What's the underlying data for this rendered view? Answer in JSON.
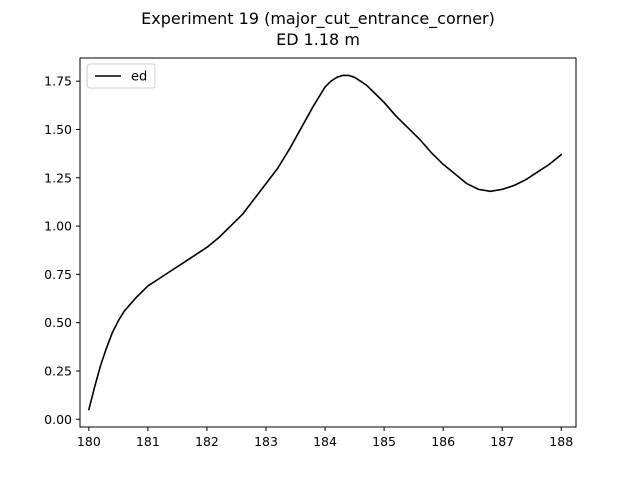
{
  "chart_data": {
    "type": "line",
    "title": "Experiment 19 (major_cut_entrance_corner)",
    "subtitle": "ED 1.18 m",
    "xlabel": "",
    "ylabel": "",
    "xlim": [
      179.85,
      188.25
    ],
    "ylim": [
      -0.04,
      1.87
    ],
    "xticks": [
      180,
      181,
      182,
      183,
      184,
      185,
      186,
      187,
      188
    ],
    "xtick_labels": [
      "180",
      "181",
      "182",
      "183",
      "184",
      "185",
      "186",
      "187",
      "188"
    ],
    "yticks": [
      0.0,
      0.25,
      0.5,
      0.75,
      1.0,
      1.25,
      1.5,
      1.75
    ],
    "ytick_labels": [
      "0.00",
      "0.25",
      "0.50",
      "0.75",
      "1.00",
      "1.25",
      "1.50",
      "1.75"
    ],
    "grid": false,
    "legend_position": "top-left",
    "series": [
      {
        "name": "ed",
        "color": "#000000",
        "x": [
          180.0,
          180.1,
          180.2,
          180.3,
          180.4,
          180.5,
          180.6,
          180.8,
          181.0,
          181.2,
          181.4,
          181.6,
          181.8,
          182.0,
          182.2,
          182.4,
          182.6,
          182.8,
          183.0,
          183.2,
          183.4,
          183.6,
          183.8,
          184.0,
          184.1,
          184.2,
          184.3,
          184.4,
          184.5,
          184.6,
          184.7,
          184.8,
          185.0,
          185.2,
          185.4,
          185.6,
          185.8,
          186.0,
          186.2,
          186.4,
          186.6,
          186.8,
          187.0,
          187.2,
          187.4,
          187.6,
          187.8,
          188.0
        ],
        "y": [
          0.05,
          0.17,
          0.28,
          0.37,
          0.45,
          0.51,
          0.56,
          0.63,
          0.69,
          0.73,
          0.77,
          0.81,
          0.85,
          0.89,
          0.94,
          1.0,
          1.06,
          1.14,
          1.22,
          1.3,
          1.4,
          1.51,
          1.62,
          1.72,
          1.75,
          1.77,
          1.78,
          1.78,
          1.77,
          1.75,
          1.73,
          1.7,
          1.64,
          1.57,
          1.51,
          1.45,
          1.38,
          1.32,
          1.27,
          1.22,
          1.19,
          1.18,
          1.19,
          1.21,
          1.24,
          1.28,
          1.32,
          1.37
        ]
      }
    ]
  }
}
